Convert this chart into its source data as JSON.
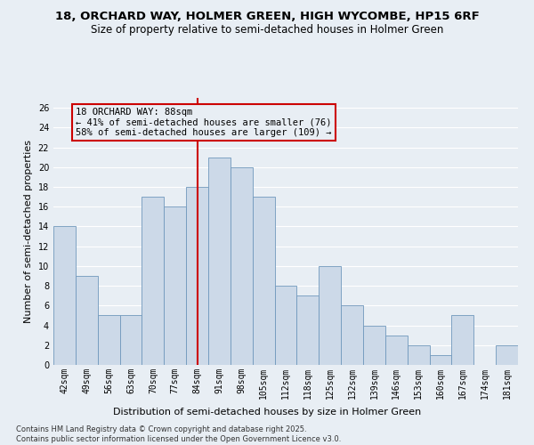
{
  "title": "18, ORCHARD WAY, HOLMER GREEN, HIGH WYCOMBE, HP15 6RF",
  "subtitle": "Size of property relative to semi-detached houses in Holmer Green",
  "xlabel": "Distribution of semi-detached houses by size in Holmer Green",
  "ylabel": "Number of semi-detached properties",
  "categories": [
    "42sqm",
    "49sqm",
    "56sqm",
    "63sqm",
    "70sqm",
    "77sqm",
    "84sqm",
    "91sqm",
    "98sqm",
    "105sqm",
    "112sqm",
    "118sqm",
    "125sqm",
    "132sqm",
    "139sqm",
    "146sqm",
    "153sqm",
    "160sqm",
    "167sqm",
    "174sqm",
    "181sqm"
  ],
  "values": [
    14,
    9,
    5,
    5,
    17,
    16,
    18,
    21,
    20,
    17,
    8,
    7,
    10,
    6,
    4,
    3,
    2,
    1,
    5,
    0,
    2
  ],
  "bar_color": "#ccd9e8",
  "bar_edge_color": "#7098bc",
  "vline_color": "#cc0000",
  "vline_x_index": 6.5,
  "annotation_box_text": "18 ORCHARD WAY: 88sqm\n← 41% of semi-detached houses are smaller (76)\n58% of semi-detached houses are larger (109) →",
  "ylim": [
    0,
    27
  ],
  "yticks": [
    0,
    2,
    4,
    6,
    8,
    10,
    12,
    14,
    16,
    18,
    20,
    22,
    24,
    26
  ],
  "footnote": "Contains HM Land Registry data © Crown copyright and database right 2025.\nContains public sector information licensed under the Open Government Licence v3.0.",
  "background_color": "#e8eef4",
  "grid_color": "#ffffff",
  "title_fontsize": 9.5,
  "subtitle_fontsize": 8.5,
  "axis_label_fontsize": 8,
  "tick_fontsize": 7,
  "annotation_fontsize": 7.5,
  "footnote_fontsize": 6
}
